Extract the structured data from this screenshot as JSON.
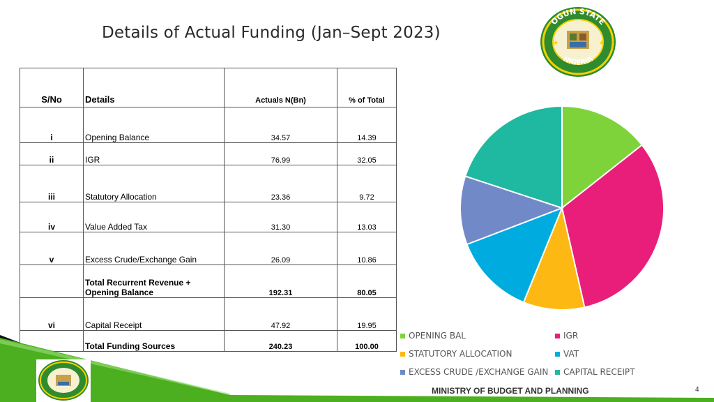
{
  "title": "Details of Actual Funding (Jan–Sept 2023)",
  "seal": {
    "text_top": "OGUN STATE",
    "text_bottom": "NIGERIA"
  },
  "table": {
    "headers": {
      "sn": "S/No",
      "details": "Details",
      "actuals": "Actuals N(Bn)",
      "pct": "% of Total"
    },
    "rows": [
      {
        "sn": "i",
        "details": "Opening Balance",
        "actuals": "34.57",
        "pct": "14.39"
      },
      {
        "sn": "ii",
        "details": "IGR",
        "actuals": "76.99",
        "pct": "32.05"
      },
      {
        "sn": "iii",
        "details": "Statutory Allocation",
        "actuals": "23.36",
        "pct": "9.72"
      },
      {
        "sn": "iv",
        "details": "Value Added Tax",
        "actuals": "31.30",
        "pct": "13.03"
      },
      {
        "sn": "v",
        "details": "Excess Crude/Exchange Gain",
        "actuals": "26.09",
        "pct": "10.86"
      },
      {
        "sn": "",
        "details": "Total Recurrent Revenue + Opening Balance",
        "actuals": "192.31",
        "pct": "80.05"
      },
      {
        "sn": "vi",
        "details": "Capital Receipt",
        "actuals": "47.92",
        "pct": "19.95"
      },
      {
        "sn": "",
        "details": "Total Funding Sources",
        "actuals": "240.23",
        "pct": "100.00"
      }
    ]
  },
  "chart_data": {
    "type": "pie",
    "categories": [
      "OPENING BAL",
      "IGR",
      "STATUTORY ALLOCATION",
      "VAT",
      "EXCESS CRUDE /EXCHANGE GAIN",
      "CAPITAL RECEIPT"
    ],
    "values": [
      14.39,
      32.05,
      9.72,
      13.03,
      10.86,
      19.95
    ],
    "colors": [
      "#7ed33b",
      "#e91e7a",
      "#fdb813",
      "#00acdf",
      "#7189c7",
      "#1fb8a0"
    ],
    "legend_position": "bottom"
  },
  "footer": {
    "ministry": "MINISTRY OF BUDGET AND PLANNING",
    "page": "4"
  },
  "colors": {
    "green_bar": "#4caf1f",
    "dark_bar": "#111111"
  }
}
